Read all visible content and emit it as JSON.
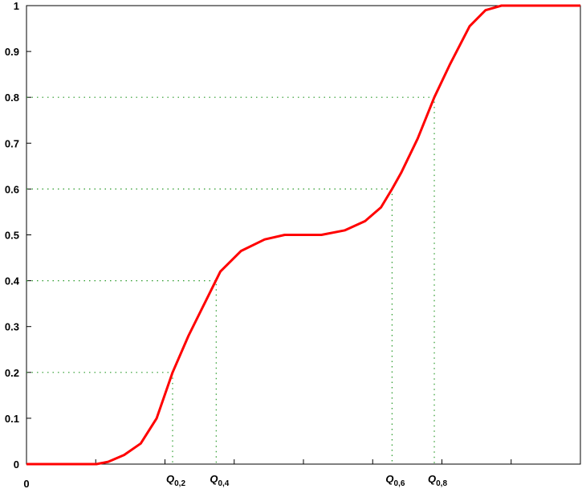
{
  "chart_data": {
    "type": "line",
    "x": [
      0,
      1.01,
      1.18,
      1.41,
      1.65,
      1.88,
      2.11,
      2.34,
      2.57,
      2.8,
      3.1,
      3.44,
      3.73,
      4.26,
      4.6,
      4.89,
      5.12,
      5.28,
      5.41,
      5.65,
      5.89,
      6.11,
      6.4,
      6.63,
      6.86,
      8
    ],
    "values": [
      0,
      0,
      0.005,
      0.02,
      0.045,
      0.1,
      0.2,
      0.28,
      0.35,
      0.42,
      0.465,
      0.49,
      0.5,
      0.5,
      0.51,
      0.53,
      0.56,
      0.6,
      0.635,
      0.71,
      0.8,
      0.87,
      0.955,
      0.99,
      1,
      1
    ],
    "color": "#ff0000",
    "xlim": [
      0,
      8
    ],
    "xticks": [
      0
    ],
    "xticks_unlabeled": [
      1,
      2,
      3,
      4,
      5,
      6,
      7
    ],
    "ylim": [
      0,
      1
    ],
    "yticks": [
      0,
      0.1,
      0.2,
      0.3,
      0.4,
      0.5,
      0.6,
      0.7,
      0.8,
      0.9,
      1
    ],
    "quantile_color": "#2a9a2a",
    "quantiles": [
      {
        "p": 0.2,
        "x": 2.11,
        "label": "Q",
        "sub": "0,2"
      },
      {
        "p": 0.4,
        "x": 2.74,
        "label": "Q",
        "sub": "0,4"
      },
      {
        "p": 0.6,
        "x": 5.28,
        "label": "Q",
        "sub": "0,6"
      },
      {
        "p": 0.8,
        "x": 5.89,
        "label": "Q",
        "sub": "0,8"
      }
    ]
  }
}
